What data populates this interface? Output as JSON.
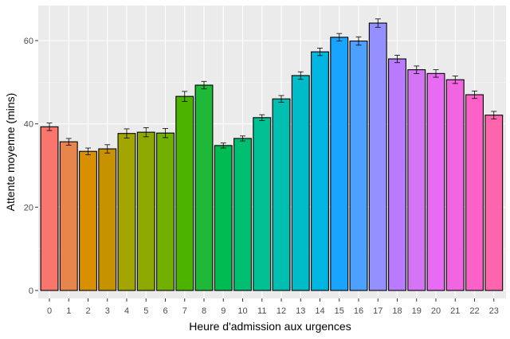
{
  "chart_data": {
    "type": "bar",
    "title": "",
    "xlabel": "Heure d'admission aux urgences",
    "ylabel": "Attente moyenne (mins)",
    "ylim": [
      0,
      66
    ],
    "yticks": [
      0,
      20,
      40,
      60
    ],
    "grid": true,
    "legend": "none",
    "categories": [
      "0",
      "1",
      "2",
      "3",
      "4",
      "5",
      "6",
      "7",
      "8",
      "9",
      "10",
      "11",
      "12",
      "13",
      "14",
      "15",
      "16",
      "17",
      "18",
      "19",
      "20",
      "21",
      "22",
      "23"
    ],
    "values": [
      39.3,
      35.7,
      33.4,
      34.0,
      37.7,
      38.0,
      37.8,
      46.6,
      49.3,
      34.8,
      36.5,
      41.5,
      46.0,
      51.6,
      57.3,
      60.8,
      59.9,
      64.2,
      55.6,
      53.0,
      52.1,
      50.6,
      47.0,
      42.1
    ],
    "error": [
      0.9,
      0.8,
      0.8,
      1.0,
      1.1,
      1.1,
      1.1,
      1.2,
      0.9,
      0.6,
      0.6,
      0.7,
      0.8,
      0.9,
      0.9,
      0.9,
      1.0,
      1.0,
      0.9,
      0.9,
      0.9,
      0.9,
      0.9,
      0.9
    ],
    "colors": [
      "#F8766D",
      "#E8854D",
      "#D89000",
      "#C79200",
      "#A3A500",
      "#8DA800",
      "#72B000",
      "#4CB400",
      "#1FB839",
      "#00BA52",
      "#00BE70",
      "#00C094",
      "#00BFB0",
      "#00BBC8",
      "#00B6E0",
      "#19A4FF",
      "#4EA0FF",
      "#9590FF",
      "#BA7AFF",
      "#D474F4",
      "#E76BF3",
      "#F265E0",
      "#FC61C8",
      "#FF65AC"
    ]
  }
}
